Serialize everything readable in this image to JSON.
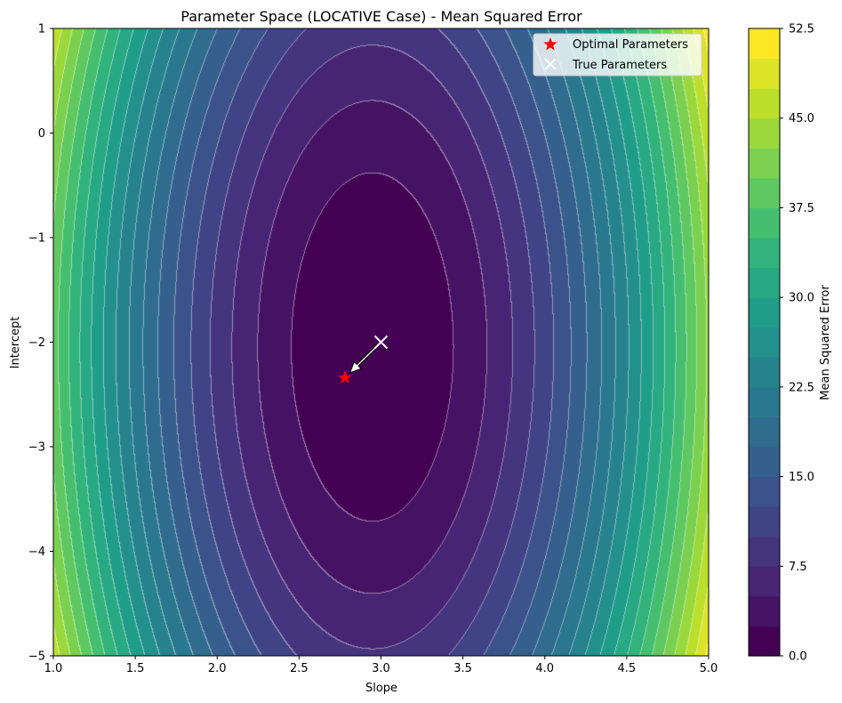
{
  "chart_data": {
    "type": "contour",
    "title": "Parameter Space (LOCATIVE Case) - Mean Squared Error",
    "xlabel": "Slope",
    "ylabel": "Intercept",
    "xlim": [
      1.0,
      5.0
    ],
    "ylim": [
      -5,
      1
    ],
    "x_ticks": [
      "1.0",
      "1.5",
      "2.0",
      "2.5",
      "3.0",
      "3.5",
      "4.0",
      "4.5",
      "5.0"
    ],
    "y_ticks": [
      "−5",
      "−4",
      "−3",
      "−2",
      "−1",
      "0",
      "1"
    ],
    "colorbar": {
      "label": "Mean Squared Error",
      "range": [
        0.0,
        52.5
      ],
      "ticks": [
        "0.0",
        "7.5",
        "15.0",
        "22.5",
        "30.0",
        "37.5",
        "45.0",
        "52.5"
      ],
      "level_step": 2.5,
      "colormap": "viridis"
    },
    "surface_model": {
      "center_slope": 2.95,
      "center_intercept": -2.05,
      "slope_coef": 10.2,
      "intercept_coef": 0.9
    },
    "legend": {
      "placement": "top-right",
      "entries": [
        {
          "name": "Optimal Parameters",
          "marker": "star",
          "color": "#ff0000"
        },
        {
          "name": "True Parameters",
          "marker": "x",
          "color": "#ffffff"
        }
      ]
    },
    "points": {
      "optimal": {
        "slope": 2.78,
        "intercept": -2.34
      },
      "true": {
        "slope": 3.0,
        "intercept": -2.0
      }
    },
    "grid": false
  }
}
